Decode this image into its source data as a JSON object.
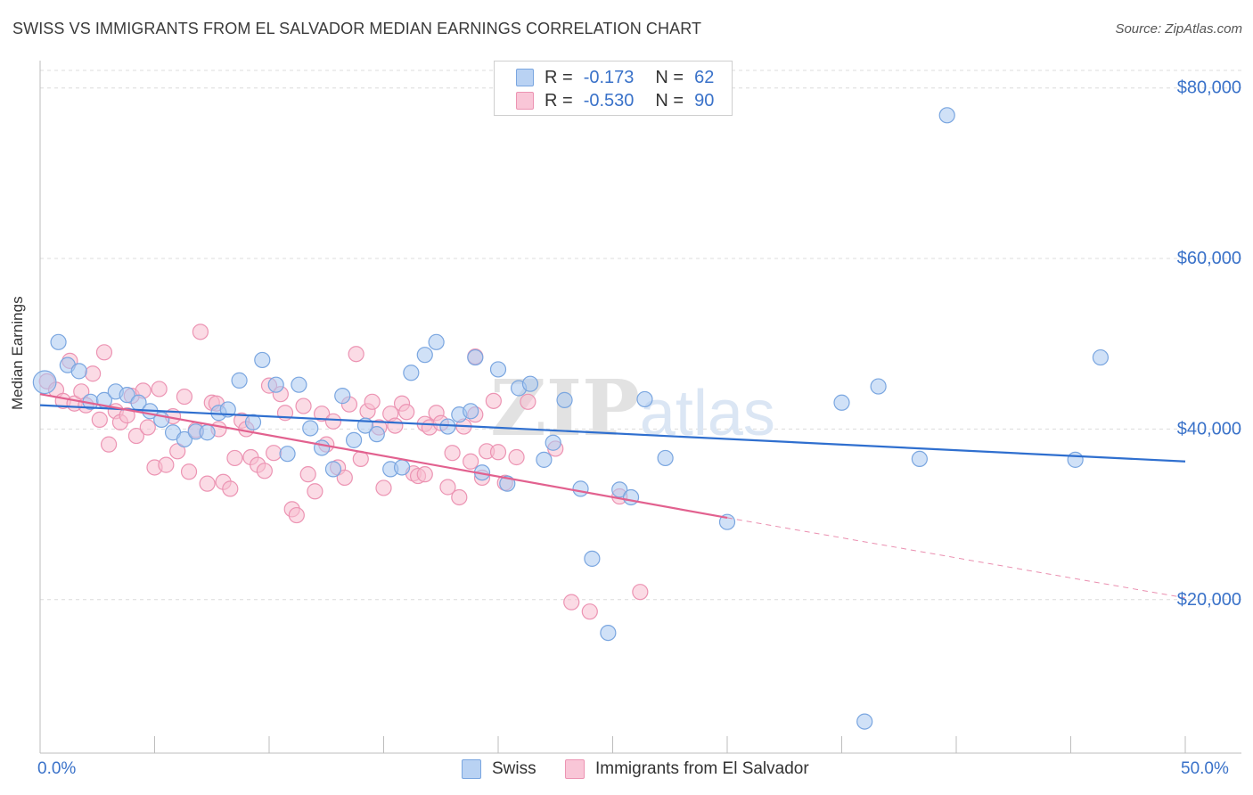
{
  "header": {
    "title": "SWISS VS IMMIGRANTS FROM EL SALVADOR MEDIAN EARNINGS CORRELATION CHART",
    "source": "Source: ZipAtlas.com"
  },
  "legend_top": {
    "rows": [
      {
        "r_label": "R =",
        "r_value": "-0.173",
        "n_label": "N =",
        "n_value": "62"
      },
      {
        "r_label": "R =",
        "r_value": "-0.530",
        "n_label": "N =",
        "n_value": "90"
      }
    ]
  },
  "legend_bottom": {
    "items": [
      "Swiss",
      "Immigrants from El Salvador"
    ]
  },
  "colors": {
    "swiss_fill": "#aac8f0",
    "swiss_stroke": "#7aa6e0",
    "swiss_line": "#2f6fcf",
    "salvador_fill": "#f7bdd0",
    "salvador_stroke": "#ec94b3",
    "salvador_line": "#e2618f",
    "axis_label": "#3a72c9",
    "grid": "#dcdcdc"
  },
  "chart_data": {
    "type": "scatter",
    "title": "SWISS VS IMMIGRANTS FROM EL SALVADOR MEDIAN EARNINGS CORRELATION CHART",
    "ylabel": "Median Earnings",
    "xlabel": "",
    "x_tick_labels": [
      "0.0%",
      "50.0%"
    ],
    "y_tick_labels": [
      "$20,000",
      "$40,000",
      "$60,000",
      "$80,000"
    ],
    "y_ticks": [
      20000,
      40000,
      60000,
      80000
    ],
    "xlim": [
      0,
      50
    ],
    "ylim": [
      2000,
      83000
    ],
    "watermark": "ZIPatlas",
    "series": [
      {
        "name": "Swiss",
        "trend": {
          "x": [
            0,
            50
          ],
          "y": [
            42800,
            36200
          ],
          "dashed_after": null
        },
        "points": [
          {
            "x": 0.2,
            "y": 45500,
            "s": 1.6
          },
          {
            "x": 0.8,
            "y": 50200
          },
          {
            "x": 1.2,
            "y": 47500
          },
          {
            "x": 1.7,
            "y": 46800
          },
          {
            "x": 2.2,
            "y": 43200
          },
          {
            "x": 2.8,
            "y": 43400
          },
          {
            "x": 3.3,
            "y": 44400
          },
          {
            "x": 3.8,
            "y": 44000
          },
          {
            "x": 4.3,
            "y": 43100
          },
          {
            "x": 4.8,
            "y": 42100
          },
          {
            "x": 5.3,
            "y": 41100
          },
          {
            "x": 5.8,
            "y": 39600
          },
          {
            "x": 6.3,
            "y": 38800
          },
          {
            "x": 6.8,
            "y": 39700
          },
          {
            "x": 7.3,
            "y": 39600
          },
          {
            "x": 7.8,
            "y": 41900
          },
          {
            "x": 8.2,
            "y": 42300
          },
          {
            "x": 8.7,
            "y": 45700
          },
          {
            "x": 9.3,
            "y": 40800
          },
          {
            "x": 9.7,
            "y": 48100
          },
          {
            "x": 10.3,
            "y": 45200
          },
          {
            "x": 10.8,
            "y": 37100
          },
          {
            "x": 11.3,
            "y": 45200
          },
          {
            "x": 11.8,
            "y": 40100
          },
          {
            "x": 12.3,
            "y": 37800
          },
          {
            "x": 12.8,
            "y": 35300
          },
          {
            "x": 13.2,
            "y": 43900
          },
          {
            "x": 13.7,
            "y": 38700
          },
          {
            "x": 14.2,
            "y": 40400
          },
          {
            "x": 14.7,
            "y": 39400
          },
          {
            "x": 15.3,
            "y": 35300
          },
          {
            "x": 15.8,
            "y": 35500
          },
          {
            "x": 16.2,
            "y": 46600
          },
          {
            "x": 16.8,
            "y": 48700
          },
          {
            "x": 17.3,
            "y": 50200
          },
          {
            "x": 17.8,
            "y": 40300
          },
          {
            "x": 18.3,
            "y": 41700
          },
          {
            "x": 18.8,
            "y": 42100
          },
          {
            "x": 19.3,
            "y": 34900
          },
          {
            "x": 19.0,
            "y": 48400
          },
          {
            "x": 20.0,
            "y": 47000
          },
          {
            "x": 20.4,
            "y": 33600
          },
          {
            "x": 20.9,
            "y": 44800
          },
          {
            "x": 21.4,
            "y": 45300
          },
          {
            "x": 22.0,
            "y": 36400
          },
          {
            "x": 22.4,
            "y": 38400
          },
          {
            "x": 22.9,
            "y": 43400
          },
          {
            "x": 23.6,
            "y": 33000
          },
          {
            "x": 24.1,
            "y": 24800
          },
          {
            "x": 24.8,
            "y": 16100
          },
          {
            "x": 25.3,
            "y": 32900
          },
          {
            "x": 25.8,
            "y": 32000
          },
          {
            "x": 26.4,
            "y": 43500
          },
          {
            "x": 27.3,
            "y": 36600
          },
          {
            "x": 30.0,
            "y": 29100
          },
          {
            "x": 35.0,
            "y": 43100
          },
          {
            "x": 36.6,
            "y": 45000
          },
          {
            "x": 38.4,
            "y": 36500
          },
          {
            "x": 39.6,
            "y": 76800
          },
          {
            "x": 36.0,
            "y": 5700
          },
          {
            "x": 45.2,
            "y": 36400
          },
          {
            "x": 46.3,
            "y": 48400
          }
        ]
      },
      {
        "name": "Immigrants from El Salvador",
        "trend": {
          "x": [
            0,
            30
          ],
          "y": [
            44100,
            29600
          ],
          "dash_to": {
            "x": 50,
            "y": 20200
          }
        },
        "points": [
          {
            "x": 0.3,
            "y": 45600
          },
          {
            "x": 0.7,
            "y": 44600
          },
          {
            "x": 1.0,
            "y": 43300
          },
          {
            "x": 1.3,
            "y": 48000
          },
          {
            "x": 1.5,
            "y": 43000
          },
          {
            "x": 1.8,
            "y": 44400
          },
          {
            "x": 2.0,
            "y": 42800
          },
          {
            "x": 2.3,
            "y": 46500
          },
          {
            "x": 2.6,
            "y": 41100
          },
          {
            "x": 2.8,
            "y": 49000
          },
          {
            "x": 3.0,
            "y": 38200
          },
          {
            "x": 3.3,
            "y": 42100
          },
          {
            "x": 3.5,
            "y": 40800
          },
          {
            "x": 3.8,
            "y": 41600
          },
          {
            "x": 4.0,
            "y": 43900
          },
          {
            "x": 4.2,
            "y": 39200
          },
          {
            "x": 4.5,
            "y": 44500
          },
          {
            "x": 4.7,
            "y": 40200
          },
          {
            "x": 5.0,
            "y": 35500
          },
          {
            "x": 5.2,
            "y": 44700
          },
          {
            "x": 5.5,
            "y": 35800
          },
          {
            "x": 5.8,
            "y": 41500
          },
          {
            "x": 6.0,
            "y": 37400
          },
          {
            "x": 6.3,
            "y": 43800
          },
          {
            "x": 6.5,
            "y": 35000
          },
          {
            "x": 6.8,
            "y": 39900
          },
          {
            "x": 7.0,
            "y": 51400
          },
          {
            "x": 7.3,
            "y": 33600
          },
          {
            "x": 7.5,
            "y": 43100
          },
          {
            "x": 7.8,
            "y": 40000
          },
          {
            "x": 8.0,
            "y": 33800
          },
          {
            "x": 8.3,
            "y": 33000
          },
          {
            "x": 8.5,
            "y": 36600
          },
          {
            "x": 8.8,
            "y": 41000
          },
          {
            "x": 9.0,
            "y": 40000
          },
          {
            "x": 9.2,
            "y": 36700
          },
          {
            "x": 9.5,
            "y": 35800
          },
          {
            "x": 9.8,
            "y": 35100
          },
          {
            "x": 10.0,
            "y": 45100
          },
          {
            "x": 10.2,
            "y": 37200
          },
          {
            "x": 10.5,
            "y": 44100
          },
          {
            "x": 10.7,
            "y": 41900
          },
          {
            "x": 11.0,
            "y": 30600
          },
          {
            "x": 11.2,
            "y": 29900
          },
          {
            "x": 11.5,
            "y": 42700
          },
          {
            "x": 11.7,
            "y": 34700
          },
          {
            "x": 12.0,
            "y": 32700
          },
          {
            "x": 12.3,
            "y": 41800
          },
          {
            "x": 12.5,
            "y": 38200
          },
          {
            "x": 12.8,
            "y": 40900
          },
          {
            "x": 13.0,
            "y": 35500
          },
          {
            "x": 13.3,
            "y": 34300
          },
          {
            "x": 13.5,
            "y": 42900
          },
          {
            "x": 13.8,
            "y": 48800
          },
          {
            "x": 14.0,
            "y": 36500
          },
          {
            "x": 14.3,
            "y": 42100
          },
          {
            "x": 14.5,
            "y": 43200
          },
          {
            "x": 14.8,
            "y": 40200
          },
          {
            "x": 15.0,
            "y": 33100
          },
          {
            "x": 15.3,
            "y": 41800
          },
          {
            "x": 15.5,
            "y": 40400
          },
          {
            "x": 15.8,
            "y": 43000
          },
          {
            "x": 16.0,
            "y": 42000
          },
          {
            "x": 16.3,
            "y": 34800
          },
          {
            "x": 16.5,
            "y": 34500
          },
          {
            "x": 16.8,
            "y": 40600
          },
          {
            "x": 17.0,
            "y": 40200
          },
          {
            "x": 17.3,
            "y": 41900
          },
          {
            "x": 17.5,
            "y": 40700
          },
          {
            "x": 17.8,
            "y": 33200
          },
          {
            "x": 18.0,
            "y": 37200
          },
          {
            "x": 18.3,
            "y": 32000
          },
          {
            "x": 18.5,
            "y": 40300
          },
          {
            "x": 18.8,
            "y": 36200
          },
          {
            "x": 19.0,
            "y": 41700
          },
          {
            "x": 19.3,
            "y": 34300
          },
          {
            "x": 19.5,
            "y": 37400
          },
          {
            "x": 19.8,
            "y": 43300
          },
          {
            "x": 20.0,
            "y": 37300
          },
          {
            "x": 20.3,
            "y": 33700
          },
          {
            "x": 20.8,
            "y": 36700
          },
          {
            "x": 21.3,
            "y": 43200
          },
          {
            "x": 22.5,
            "y": 37700
          },
          {
            "x": 23.2,
            "y": 19700
          },
          {
            "x": 24.0,
            "y": 18600
          },
          {
            "x": 25.3,
            "y": 32100
          },
          {
            "x": 26.2,
            "y": 20900
          },
          {
            "x": 16.8,
            "y": 34700
          },
          {
            "x": 19.0,
            "y": 48500
          },
          {
            "x": 7.7,
            "y": 43000
          }
        ]
      }
    ]
  }
}
